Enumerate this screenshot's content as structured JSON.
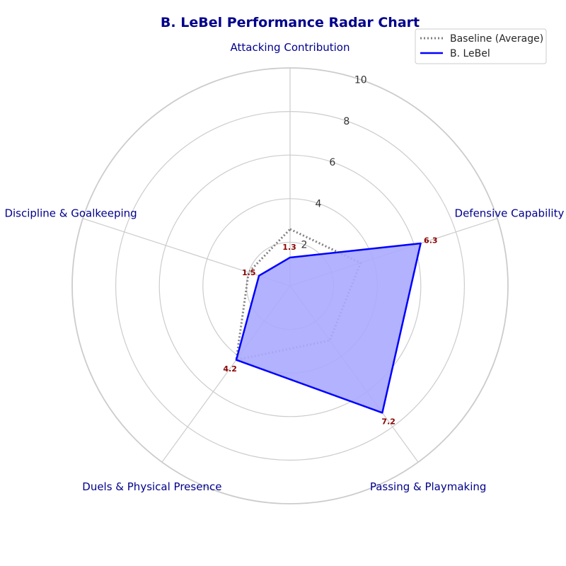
{
  "chart_data": {
    "type": "radar",
    "title": "B. LeBel Performance Radar Chart",
    "categories": [
      "Attacking Contribution",
      "Defensive Capability",
      "Passing & Playmaking",
      "Duels & Physical Presence",
      "Discipline & Goalkeeping"
    ],
    "rlim": [
      0,
      10
    ],
    "rticks": [
      2,
      4,
      6,
      8,
      10
    ],
    "grid": true,
    "legend_position": "top-right",
    "series": [
      {
        "name": "Baseline (Average)",
        "values": [
          2.6,
          3.4,
          3.1,
          4.2,
          2.0
        ],
        "color": "#808080",
        "style": "dotted"
      },
      {
        "name": "B. LeBel",
        "values": [
          1.3,
          6.3,
          7.2,
          4.2,
          1.5
        ],
        "color": "#0000ff",
        "fill": "#aaaaff",
        "style": "solid",
        "data_labels": [
          "1.3",
          "6.3",
          "7.2",
          "4.2",
          "1.5"
        ]
      }
    ]
  }
}
